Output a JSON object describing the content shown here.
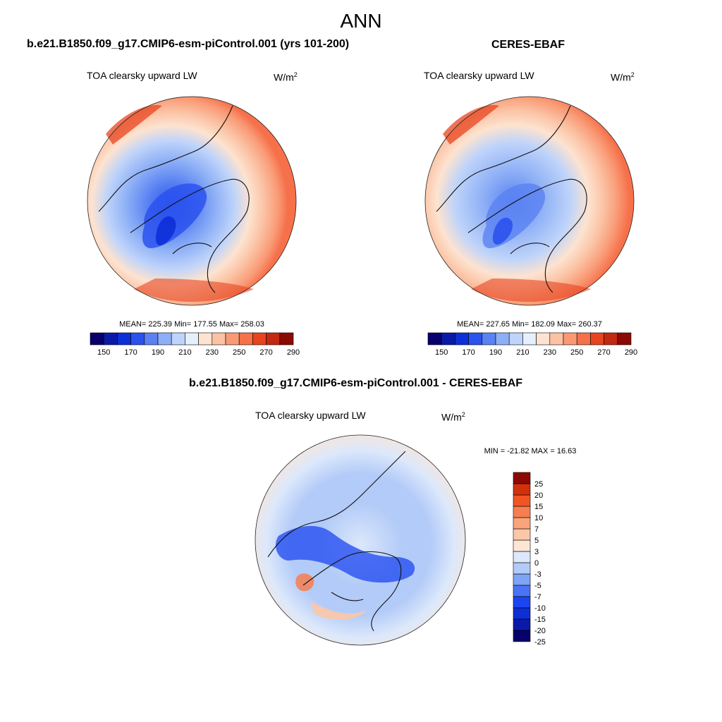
{
  "page": {
    "main_title": "ANN"
  },
  "chart_data": [
    {
      "type": "heatmap",
      "title": "b.e21.B1850.f09_g17.CMIP6-esm-piControl.001 (yrs 101-200)",
      "variable": "TOA clearsky upward LW",
      "units_base": "W/m",
      "units_exp": "2",
      "projection": "north polar stereographic",
      "stats_text": "MEAN= 225.39  Min= 177.55  Max= 258.03",
      "stats": {
        "mean": 225.39,
        "min": 177.55,
        "max": 258.03
      },
      "colorbar": {
        "orientation": "horizontal",
        "levels": [
          150,
          160,
          170,
          180,
          190,
          200,
          210,
          220,
          230,
          240,
          250,
          260,
          270,
          280,
          290
        ],
        "tick_labels": [
          "150",
          "170",
          "190",
          "210",
          "230",
          "250",
          "270",
          "290"
        ],
        "colors": [
          "#08006b",
          "#0a1aa8",
          "#0d2fd8",
          "#2a52ee",
          "#5a82f2",
          "#8daff6",
          "#bfd4fa",
          "#e6f0fc",
          "#fde3d0",
          "#fbc2a4",
          "#f99a75",
          "#f6704a",
          "#e8441f",
          "#c32810",
          "#8c0a04"
        ]
      }
    },
    {
      "type": "heatmap",
      "title": "CERES-EBAF",
      "variable": "TOA clearsky upward LW",
      "units_base": "W/m",
      "units_exp": "2",
      "projection": "north polar stereographic",
      "stats_text": "MEAN= 227.65  Min= 182.09  Max= 260.37",
      "stats": {
        "mean": 227.65,
        "min": 182.09,
        "max": 260.37
      },
      "colorbar": {
        "orientation": "horizontal",
        "levels": [
          150,
          160,
          170,
          180,
          190,
          200,
          210,
          220,
          230,
          240,
          250,
          260,
          270,
          280,
          290
        ],
        "tick_labels": [
          "150",
          "170",
          "190",
          "210",
          "230",
          "250",
          "270",
          "290"
        ],
        "colors": [
          "#08006b",
          "#0a1aa8",
          "#0d2fd8",
          "#2a52ee",
          "#5a82f2",
          "#8daff6",
          "#bfd4fa",
          "#e6f0fc",
          "#fde3d0",
          "#fbc2a4",
          "#f99a75",
          "#f6704a",
          "#e8441f",
          "#c32810",
          "#8c0a04"
        ]
      }
    },
    {
      "type": "heatmap",
      "title": "b.e21.B1850.f09_g17.CMIP6-esm-piControl.001 - CERES-EBAF",
      "variable": "TOA clearsky upward LW",
      "units_base": "W/m",
      "units_exp": "2",
      "projection": "north polar stereographic",
      "stats_text": "MIN = -21.82 MAX =  16.63",
      "stats": {
        "min": -21.82,
        "max": 16.63
      },
      "colorbar": {
        "orientation": "vertical",
        "levels": [
          -25,
          -20,
          -15,
          -10,
          -7,
          -5,
          -3,
          0,
          3,
          5,
          7,
          10,
          15,
          20,
          25
        ],
        "tick_labels": [
          "25",
          "20",
          "15",
          "10",
          "7",
          "5",
          "3",
          "0",
          "-3",
          "-5",
          "-7",
          "-10",
          "-15",
          "-20",
          "-25"
        ],
        "colors": [
          "#08006b",
          "#0a1aa8",
          "#0d2fd8",
          "#1c45f0",
          "#4a74f3",
          "#7fa3f5",
          "#b3cbf8",
          "#dce8fb",
          "#fde5d4",
          "#fbc7a8",
          "#f9a47c",
          "#f77e50",
          "#f25424",
          "#d3300d",
          "#8c0a04"
        ]
      }
    }
  ]
}
